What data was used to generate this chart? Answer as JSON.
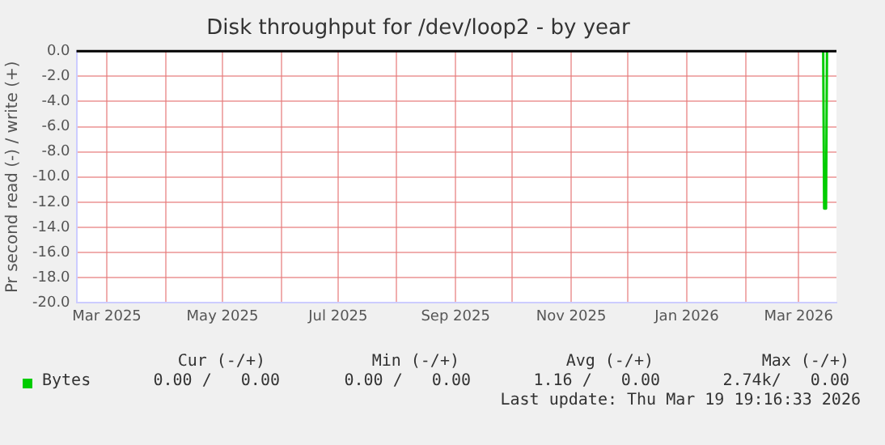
{
  "chart_data": {
    "type": "line",
    "title": "Disk throughput for /dev/loop2 - by year",
    "ylabel": "Pr second read (-) / write (+)",
    "x": [
      "2026-03-14",
      "2026-03-14T12:00",
      "2026-03-15T12:00",
      "2026-03-16"
    ],
    "series": [
      {
        "name": "Bytes",
        "color": "#00cc00",
        "values": [
          0,
          -12.5,
          -12.5,
          0
        ]
      }
    ],
    "xlim": [
      "2025-02-13",
      "2026-03-21"
    ],
    "xticks": [
      {
        "value": "2025-03-01",
        "label": "Mar 2025"
      },
      {
        "value": "2025-04-01",
        "label": null
      },
      {
        "value": "2025-05-01",
        "label": "May 2025"
      },
      {
        "value": "2025-06-01",
        "label": null
      },
      {
        "value": "2025-07-01",
        "label": "Jul 2025"
      },
      {
        "value": "2025-08-01",
        "label": null
      },
      {
        "value": "2025-09-01",
        "label": "Sep 2025"
      },
      {
        "value": "2025-10-01",
        "label": null
      },
      {
        "value": "2025-11-01",
        "label": "Nov 2025"
      },
      {
        "value": "2025-12-01",
        "label": null
      },
      {
        "value": "2026-01-01",
        "label": "Jan 2026"
      },
      {
        "value": "2026-02-01",
        "label": null
      },
      {
        "value": "2026-03-01",
        "label": "Mar 2026"
      }
    ],
    "ylim": [
      -20,
      0
    ],
    "yticks": [
      {
        "value": 0,
        "label": "0.0"
      },
      {
        "value": -2,
        "label": "-2.0"
      },
      {
        "value": -4,
        "label": "-4.0"
      },
      {
        "value": -6,
        "label": "-6.0"
      },
      {
        "value": -8,
        "label": "-8.0"
      },
      {
        "value": -10,
        "label": "-10.0"
      },
      {
        "value": -12,
        "label": "-12.0"
      },
      {
        "value": -14,
        "label": "-14.0"
      },
      {
        "value": -16,
        "label": "-16.0"
      },
      {
        "value": -18,
        "label": "-18.0"
      },
      {
        "value": -20,
        "label": "-20.0"
      }
    ],
    "grid": true,
    "legend": "bottom left",
    "marker": "none",
    "line_style": "solid",
    "ref_lines": [
      {
        "axis": "y",
        "value": 0,
        "color": "#000000"
      }
    ],
    "annotations": [
      "Cur (-/+)",
      "Min (-/+)",
      "Avg (-/+)",
      "Max (-/+)",
      "0.00 /   0.00",
      "0.00 /   0.00",
      "1.16 /   0.00",
      "2.74k/   0.00",
      "Last update: Thu Mar 19 19:16:33 2026"
    ]
  }
}
